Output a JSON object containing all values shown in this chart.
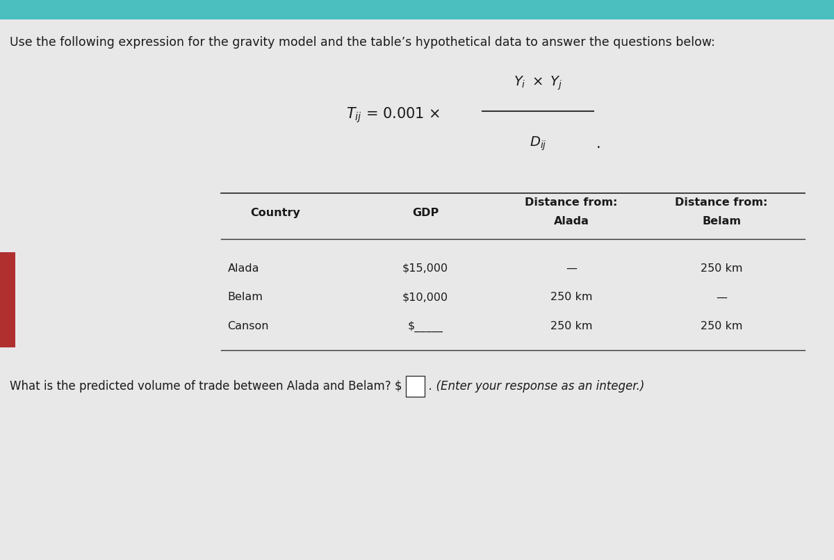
{
  "title": "Use the following expression for the gravity model and the table’s hypothetical data to answer the questions below:",
  "table_headers": [
    "Country",
    "GDP",
    "Distance from:\nAlada",
    "Distance from:\nBelam"
  ],
  "table_rows": [
    [
      "Alada",
      "$15,000",
      "—",
      "250 km"
    ],
    [
      "Belam",
      "$10,000",
      "250 km",
      "—"
    ],
    [
      "Canson",
      "$_____",
      "250 km",
      "250 km"
    ]
  ],
  "question": "What is the predicted volume of trade between Alada and Belam? $",
  "question_suffix": ". (Enter your response as an integer.)",
  "bg_color": "#e8e8e8",
  "top_bar_color": "#4bbfbf",
  "left_bar_color": "#b03030",
  "text_color": "#1a1a1a",
  "input_box_color": "#ffffff",
  "input_box_border": "#333333",
  "line_color": "#333333"
}
